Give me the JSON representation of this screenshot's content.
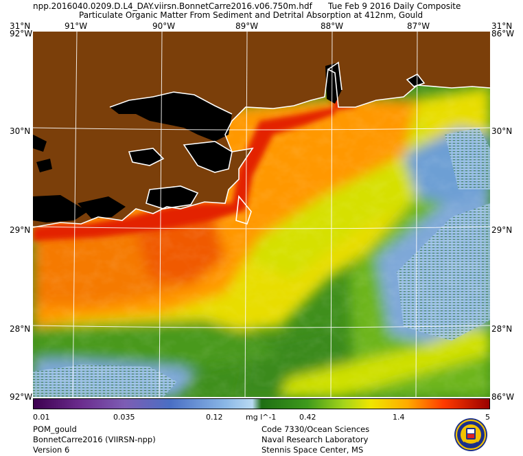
{
  "header": {
    "file_name": "npp.2016040.0209.D.L4_DAY.viirsn.BonnetCarre2016.v06.750m.hdf",
    "date_label": "Tue Feb  9 2016 Daily Composite",
    "product_title": "Particulate Organic Matter From Sediment and Detrital Absorption at 412nm, Gould"
  },
  "axes": {
    "lon_top": [
      "91°W",
      "90°W",
      "89°W",
      "88°W",
      "87°W"
    ],
    "lat_left": [
      "30°N",
      "29°N",
      "28°N"
    ],
    "lat_right": [
      "30°N",
      "29°N",
      "28°N"
    ],
    "corner_tl_lat": "31°N",
    "corner_tl_lon": "92°W",
    "corner_tr_lat": "31°N",
    "corner_tr_lon": "86°W",
    "corner_bl": "92°W",
    "corner_br": "86°W"
  },
  "colorbar": {
    "ticks": [
      "0.01",
      "0.035",
      "0.12",
      "0.42",
      "1.4",
      "5"
    ],
    "unit": "mg l^-1",
    "scale": "log",
    "range": [
      0.01,
      5
    ],
    "colors": [
      "#3d0050",
      "#7a3aa0",
      "#5b7fcf",
      "#8ab7e6",
      "#9fd0ef",
      "#2e8b1e",
      "#79c51a",
      "#e8e000",
      "#ff9a00",
      "#ff3a00",
      "#a00000"
    ]
  },
  "footer_left": [
    "POM_gould",
    "BonnetCarre2016 (VIIRSN-npp)",
    "Version 6"
  ],
  "footer_right": [
    "Code 7330/Ocean Sciences",
    "Naval Research Laboratory",
    "Stennis Space Center, MS"
  ],
  "map_colors": {
    "land": "#7b3f0a",
    "no_data": "#000000",
    "coast_outline": "#ffffff",
    "graticule": "#ffffff"
  },
  "seal_icon": "nrl-seal-icon"
}
